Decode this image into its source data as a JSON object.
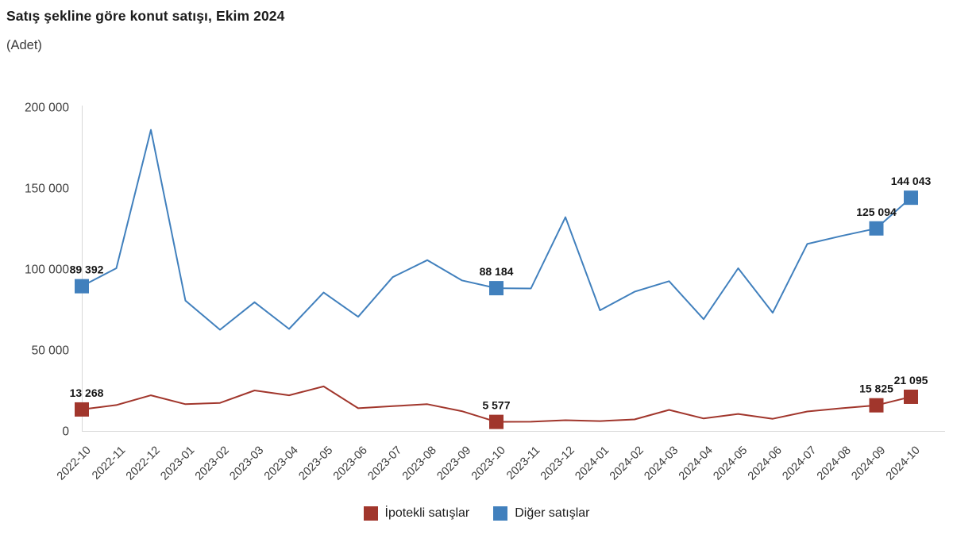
{
  "header": {
    "title": "Satış şekline göre konut satışı, Ekim 2024",
    "subtitle": "(Adet)"
  },
  "chart_data": {
    "type": "line",
    "title": "Satış şekline göre konut satışı, Ekim 2024",
    "subtitle": "(Adet)",
    "unit": "Adet",
    "categories": [
      "2022-10",
      "2022-11",
      "2022-12",
      "2023-01",
      "2023-02",
      "2023-03",
      "2023-04",
      "2023-05",
      "2023-06",
      "2023-07",
      "2023-08",
      "2023-09",
      "2023-10",
      "2023-11",
      "2023-12",
      "2024-01",
      "2024-02",
      "2024-03",
      "2024-04",
      "2024-05",
      "2024-06",
      "2024-07",
      "2024-08",
      "2024-09",
      "2024-10"
    ],
    "series": [
      {
        "name": "İpotekli satışlar",
        "color": "#a1362c",
        "marker": "square",
        "values": [
          13268,
          16000,
          22000,
          16500,
          17300,
          25000,
          22000,
          27500,
          14000,
          15300,
          16500,
          12200,
          5577,
          5700,
          6600,
          6100,
          7100,
          13000,
          7700,
          10500,
          7500,
          12000,
          14000,
          15825,
          21095
        ]
      },
      {
        "name": "Diğer satışlar",
        "color": "#4180bd",
        "marker": "square",
        "values": [
          89392,
          100500,
          186000,
          80500,
          62500,
          79500,
          63000,
          85500,
          70500,
          95000,
          105500,
          93000,
          88184,
          88000,
          132000,
          74500,
          86000,
          92500,
          69000,
          100500,
          73000,
          115500,
          120500,
          125094,
          144043
        ]
      }
    ],
    "labeled_indices": [
      0,
      12,
      23,
      24
    ],
    "labeled_values": {
      "İpotekli satışlar": {
        "2022-10": "13 268",
        "2023-10": "5 577",
        "2024-09": "15 825",
        "2024-10": "21 095"
      },
      "Diğer satışlar": {
        "2022-10": "89 392",
        "2023-10": "88 184",
        "2024-09": "125 094",
        "2024-10": "144 043"
      }
    },
    "xlabel": "",
    "ylabel": "",
    "ylim": [
      0,
      200000
    ],
    "yticks": [
      0,
      50000,
      100000,
      150000,
      200000
    ],
    "ytick_labels": [
      "0",
      "50 000",
      "100 000",
      "150 000",
      "200 000"
    ],
    "grid": false,
    "legend_position": "bottom",
    "number_format": "space-thousands"
  },
  "style": {
    "axis_line_color": "#d8d8d8",
    "tick_label_color": "#3d3d3d",
    "data_label_color": "#151515",
    "background": "#ffffff"
  }
}
